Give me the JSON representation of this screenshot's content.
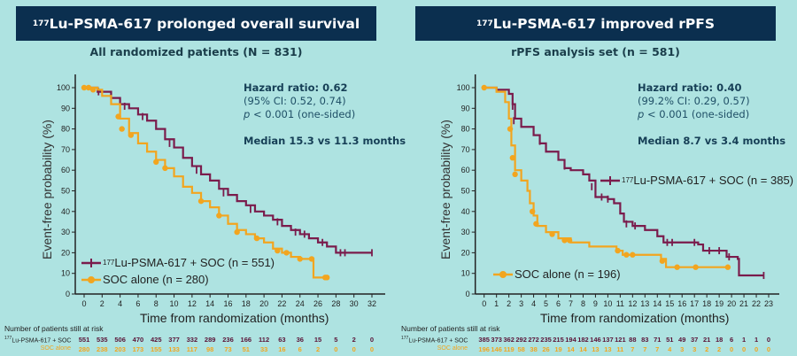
{
  "colors": {
    "treatment": "#7a1c4c",
    "control": "#f2a51f",
    "banner": "#0b2f4f",
    "background": "#aee3e1"
  },
  "chart_data": [
    {
      "type": "line",
      "title_sup": "177",
      "title": "Lu-PSMA-617 prolonged overall survival",
      "subtitle": "All randomized patients (N = 831)",
      "hazard_ratio": "Hazard ratio: 0.62",
      "ci": "(95% CI: 0.52, 0.74)",
      "p_italic": "p",
      "p_rest": " < 0.001 (one-sided)",
      "median": "Median 15.3 vs 11.3 months",
      "xlabel": "Time from randomization (months)",
      "ylabel": "Event-free probability (%)",
      "xlim": [
        0,
        32
      ],
      "ylim": [
        0,
        100
      ],
      "xticks": [
        0,
        2,
        4,
        6,
        8,
        10,
        12,
        14,
        16,
        18,
        20,
        22,
        24,
        26,
        28,
        30,
        32
      ],
      "yticks": [
        0,
        10,
        20,
        30,
        40,
        50,
        60,
        70,
        80,
        90,
        100
      ],
      "legend_position": "bottom-left",
      "series": [
        {
          "name_sup": "177",
          "name": "Lu-PSMA-617 + SOC (n = 551)",
          "key": "treatment",
          "points": [
            [
              0,
              100
            ],
            [
              1.5,
              98
            ],
            [
              3,
              95
            ],
            [
              4,
              92
            ],
            [
              5,
              90
            ],
            [
              6,
              87
            ],
            [
              7,
              84
            ],
            [
              8,
              80
            ],
            [
              9,
              75
            ],
            [
              10,
              71
            ],
            [
              11,
              66
            ],
            [
              12,
              62
            ],
            [
              13,
              58
            ],
            [
              14,
              55
            ],
            [
              15,
              51
            ],
            [
              16,
              48
            ],
            [
              17,
              45
            ],
            [
              18,
              43
            ],
            [
              19,
              40
            ],
            [
              20,
              38
            ],
            [
              21,
              36
            ],
            [
              22,
              33
            ],
            [
              23,
              31
            ],
            [
              24,
              29
            ],
            [
              25,
              27
            ],
            [
              26,
              25
            ],
            [
              27,
              23
            ],
            [
              28,
              20
            ],
            [
              32,
              20
            ]
          ],
          "censored": [
            [
              1.6,
              98
            ],
            [
              4.5,
              91
            ],
            [
              6.5,
              86
            ],
            [
              9.5,
              73
            ],
            [
              12.5,
              60
            ],
            [
              15.5,
              49
            ],
            [
              18.5,
              41
            ],
            [
              21.5,
              35
            ],
            [
              23.5,
              30
            ],
            [
              24.5,
              29
            ],
            [
              26.5,
              25
            ],
            [
              28.5,
              20
            ],
            [
              29,
              20
            ],
            [
              32,
              20
            ]
          ]
        },
        {
          "name": "SOC alone (n = 280)",
          "key": "control",
          "points": [
            [
              0,
              100
            ],
            [
              1.5,
              99
            ],
            [
              2,
              96
            ],
            [
              3,
              92
            ],
            [
              4,
              85
            ],
            [
              5,
              78
            ],
            [
              6,
              73
            ],
            [
              7,
              69
            ],
            [
              8,
              65
            ],
            [
              9,
              61
            ],
            [
              10,
              57
            ],
            [
              11,
              52
            ],
            [
              12,
              49
            ],
            [
              13,
              45
            ],
            [
              14,
              42
            ],
            [
              15,
              38
            ],
            [
              16,
              34
            ],
            [
              17,
              31
            ],
            [
              18,
              29
            ],
            [
              19,
              27
            ],
            [
              20,
              25
            ],
            [
              21,
              22
            ],
            [
              22,
              20
            ],
            [
              23,
              18
            ],
            [
              24,
              17
            ],
            [
              25.5,
              17
            ],
            [
              25.5,
              8
            ],
            [
              27,
              8
            ]
          ],
          "censored": [
            [
              0,
              100
            ],
            [
              0.5,
              100
            ],
            [
              1,
              99
            ],
            [
              3.8,
              86
            ],
            [
              4.2,
              80
            ],
            [
              5.2,
              77
            ],
            [
              8,
              64
            ],
            [
              9,
              61
            ],
            [
              13,
              45
            ],
            [
              15,
              38
            ],
            [
              17,
              30
            ],
            [
              19.2,
              27
            ],
            [
              21.5,
              21
            ],
            [
              22.5,
              20
            ],
            [
              24,
              17
            ],
            [
              25.3,
              17
            ],
            [
              26.8,
              8
            ],
            [
              27,
              8
            ]
          ]
        }
      ],
      "at_risk": {
        "title": "Number of patients still at risk",
        "rows": [
          {
            "label_sup": "177",
            "label": "Lu-PSMA-617 + SOC",
            "key": "treatment",
            "values": [
              551,
              535,
              506,
              470,
              425,
              377,
              332,
              289,
              236,
              166,
              112,
              63,
              36,
              15,
              5,
              2,
              0
            ]
          },
          {
            "label": "SOC alone",
            "key": "control",
            "values": [
              280,
              238,
              203,
              173,
              155,
              133,
              117,
              98,
              73,
              51,
              33,
              16,
              6,
              2,
              0,
              0,
              0
            ]
          }
        ]
      }
    },
    {
      "type": "line",
      "title_sup": "177",
      "title": "Lu-PSMA-617 improved rPFS",
      "subtitle": "rPFS analysis set (n = 581)",
      "hazard_ratio": "Hazard ratio: 0.40",
      "ci": "(99.2% CI: 0.29, 0.57)",
      "p_italic": "p",
      "p_rest": " < 0.001 (one-sided)",
      "median": "Median 8.7 vs 3.4 months",
      "xlabel": "Time from randomization (months)",
      "ylabel": "Event-free probability (%)",
      "xlim": [
        0,
        23
      ],
      "ylim": [
        0,
        100
      ],
      "xticks": [
        0,
        1,
        2,
        3,
        4,
        5,
        6,
        7,
        8,
        9,
        10,
        11,
        12,
        13,
        14,
        15,
        16,
        17,
        18,
        19,
        20,
        21,
        22,
        23
      ],
      "yticks": [
        0,
        10,
        20,
        30,
        40,
        50,
        60,
        70,
        80,
        90,
        100
      ],
      "legend_position": "right / bottom-left",
      "series": [
        {
          "name_sup": "177",
          "name": "Lu-PSMA-617 + SOC (n = 385)",
          "key": "treatment",
          "points": [
            [
              0,
              100
            ],
            [
              1,
              99
            ],
            [
              2,
              97
            ],
            [
              2.3,
              92
            ],
            [
              2.5,
              85
            ],
            [
              3,
              81
            ],
            [
              4,
              77
            ],
            [
              4.5,
              73
            ],
            [
              5,
              69
            ],
            [
              6,
              65
            ],
            [
              6.5,
              61
            ],
            [
              7,
              60
            ],
            [
              8,
              58
            ],
            [
              8.5,
              55
            ],
            [
              9,
              47
            ],
            [
              10,
              46
            ],
            [
              10.5,
              44
            ],
            [
              11,
              39
            ],
            [
              11.3,
              35
            ],
            [
              12,
              33
            ],
            [
              13,
              31
            ],
            [
              14,
              28
            ],
            [
              14.5,
              25
            ],
            [
              17,
              25
            ],
            [
              17.3,
              24
            ],
            [
              17.7,
              21
            ],
            [
              19.5,
              21
            ],
            [
              19.6,
              18
            ],
            [
              20.5,
              17
            ],
            [
              20.6,
              9
            ],
            [
              22.6,
              9
            ]
          ],
          "censored": [
            [
              2.3,
              91
            ],
            [
              2.4,
              84
            ],
            [
              4.5,
              74
            ],
            [
              6.5,
              62
            ],
            [
              8.7,
              52
            ],
            [
              9.5,
              47
            ],
            [
              10,
              46
            ],
            [
              11.5,
              34
            ],
            [
              12.2,
              33
            ],
            [
              14.8,
              25
            ],
            [
              15.2,
              25
            ],
            [
              17,
              25
            ],
            [
              18.2,
              21
            ],
            [
              19,
              21
            ],
            [
              19.8,
              18
            ],
            [
              22.6,
              9
            ]
          ]
        },
        {
          "name": "SOC alone (n = 196)",
          "key": "control",
          "points": [
            [
              0,
              100
            ],
            [
              1,
              98
            ],
            [
              1.7,
              93
            ],
            [
              2,
              85
            ],
            [
              2.2,
              72
            ],
            [
              2.5,
              60
            ],
            [
              3,
              55
            ],
            [
              3.5,
              50
            ],
            [
              3.7,
              44
            ],
            [
              4,
              38
            ],
            [
              4.3,
              33
            ],
            [
              5,
              30
            ],
            [
              6,
              27
            ],
            [
              7,
              25
            ],
            [
              8.5,
              23
            ],
            [
              10.7,
              21
            ],
            [
              11.2,
              19
            ],
            [
              14.3,
              17
            ],
            [
              14.7,
              13
            ],
            [
              19.8,
              13
            ]
          ],
          "censored": [
            [
              0,
              100
            ],
            [
              2.1,
              80
            ],
            [
              2.3,
              66
            ],
            [
              2.5,
              58
            ],
            [
              3.9,
              40
            ],
            [
              4.2,
              34
            ],
            [
              5.5,
              29
            ],
            [
              6.5,
              26
            ],
            [
              6.9,
              26
            ],
            [
              10.8,
              21
            ],
            [
              11.5,
              19
            ],
            [
              12,
              19
            ],
            [
              14.4,
              16
            ],
            [
              15.6,
              13
            ],
            [
              17.1,
              13
            ],
            [
              19.7,
              13
            ]
          ]
        }
      ],
      "at_risk": {
        "title": "Number of patients still at risk",
        "rows": [
          {
            "label_sup": "177",
            "label": "Lu-PSMA-617 + SOC",
            "key": "treatment",
            "values": [
              385,
              373,
              362,
              292,
              272,
              235,
              215,
              194,
              182,
              146,
              137,
              121,
              88,
              83,
              71,
              51,
              49,
              37,
              21,
              18,
              6,
              1,
              1,
              0
            ]
          },
          {
            "label": "SOC alone",
            "key": "control",
            "values": [
              196,
              146,
              119,
              58,
              38,
              26,
              19,
              14,
              14,
              13,
              13,
              11,
              7,
              7,
              7,
              4,
              3,
              3,
              2,
              2,
              0,
              0,
              0,
              0
            ]
          }
        ]
      }
    }
  ]
}
